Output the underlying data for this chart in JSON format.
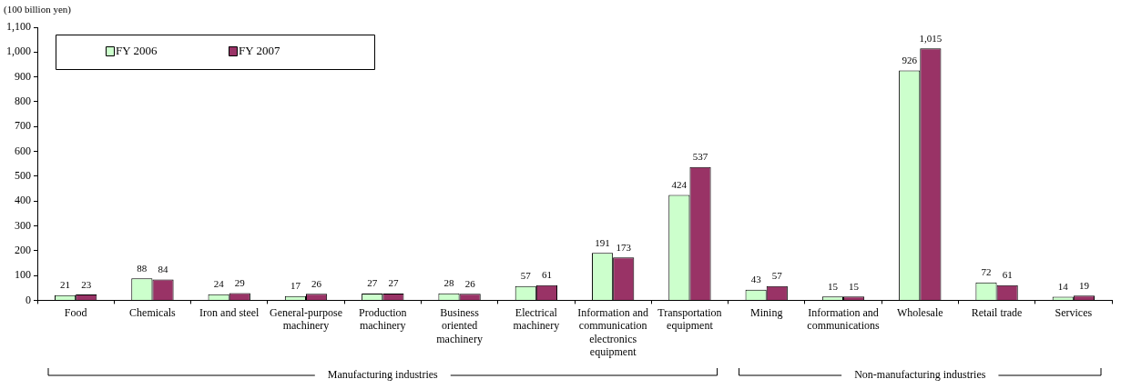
{
  "chart_data": {
    "type": "bar",
    "ylabel": "(100 billion yen)",
    "categories": [
      "Food",
      "Chemicals",
      "Iron and steel",
      "General-purpose machinery",
      "Production machinery",
      "Business oriented machinery",
      "Electrical machinery",
      "Information and communication electronics equipment",
      "Transportation equipment",
      "Mining",
      "Information and communications",
      "Wholesale",
      "Retail trade",
      "Services"
    ],
    "series": [
      {
        "name": "FY 2006",
        "color": "#ccffcc",
        "values": [
          21,
          88,
          24,
          17,
          27,
          28,
          57,
          191,
          424,
          43,
          15,
          926,
          72,
          14
        ],
        "value_labels": [
          "21",
          "88",
          "24",
          "17",
          "27",
          "28",
          "57",
          "191",
          "424",
          "43",
          "15",
          "926",
          "72",
          "14"
        ]
      },
      {
        "name": "FY 2007",
        "color": "#993366",
        "values": [
          23,
          84,
          29,
          26,
          27,
          26,
          61,
          173,
          537,
          57,
          15,
          1015,
          61,
          19
        ],
        "value_labels": [
          "23",
          "84",
          "29",
          "26",
          "27",
          "26",
          "61",
          "173",
          "537",
          "57",
          "15",
          "1,015",
          "61",
          "19"
        ]
      }
    ],
    "ylim": [
      0,
      1100
    ],
    "yticks": [
      0,
      100,
      200,
      300,
      400,
      500,
      600,
      700,
      800,
      900,
      {
        "value": 1000,
        "label": "1,000"
      },
      {
        "value": 1100,
        "label": "1,100"
      }
    ],
    "grid": false,
    "legend": "top left",
    "annotations": [
      "Manufacturing industries",
      "Non-manufacturing industries"
    ]
  }
}
